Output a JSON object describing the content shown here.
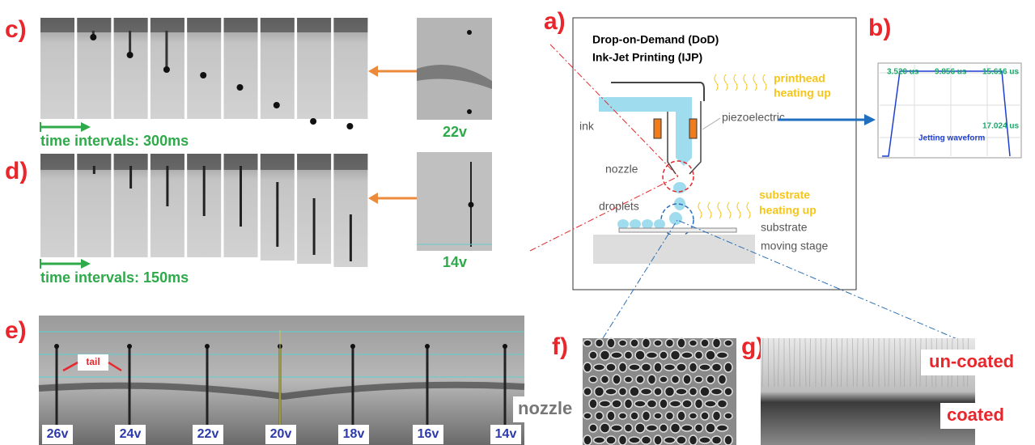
{
  "panel_labels": [
    "a)",
    "b)",
    "c)",
    "d)",
    "e)",
    "f)",
    "g)"
  ],
  "panel_c": {
    "voltage": "22v",
    "time_interval": "time intervals: 300ms"
  },
  "panel_d": {
    "voltage": "14v",
    "time_interval": "time intervals: 150ms"
  },
  "panel_a": {
    "title": [
      "Drop-on-Demand (DoD)",
      "Ink-Jet Printing (IJP)"
    ],
    "printhead": [
      "printhead",
      "heating up"
    ],
    "ink": "ink",
    "piezoelectric": "piezoelectric",
    "nozzle": "nozzle",
    "droplets": "droplets",
    "substrate_heating": [
      "substrate",
      "heating up"
    ],
    "substrate": "substrate",
    "stage": "moving stage"
  },
  "panel_b": {
    "times": [
      "3.520 us",
      "9.856 us",
      "15.616 us",
      "17.024 us"
    ],
    "caption": "Jetting waveform"
  },
  "panel_e": {
    "tail": "tail",
    "nozzle": "nozzle",
    "voltages": [
      "26v",
      "24v",
      "22v",
      "20v",
      "18v",
      "16v",
      "14v"
    ]
  },
  "panel_g": {
    "uncoated": "un-coated",
    "coated": "coated"
  }
}
